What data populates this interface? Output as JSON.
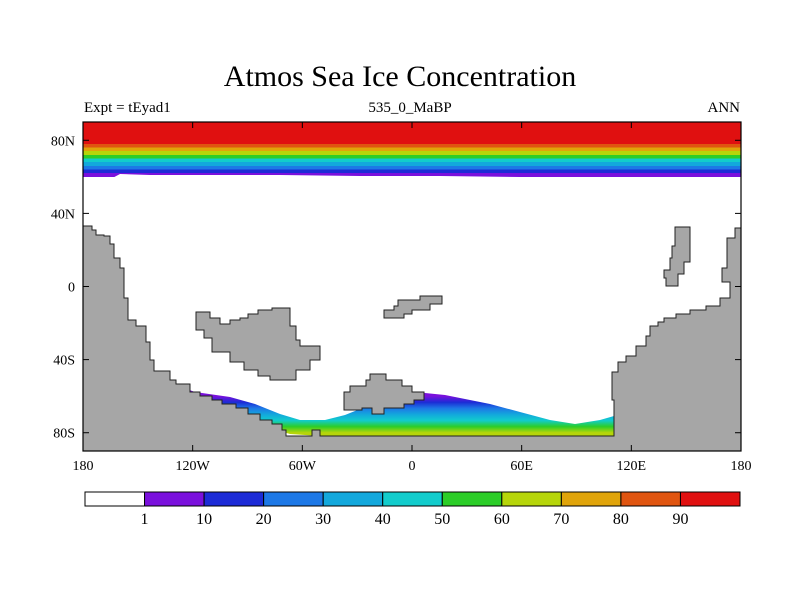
{
  "title": "Atmos Sea Ice Concentration",
  "subtitle_left": "Expt = tEyad1",
  "subtitle_center": "535_0_MaBP",
  "subtitle_right": "ANN",
  "colors": {
    "land": "#a6a6a6",
    "ocean": "#ffffff",
    "frame": "#000000",
    "levels": [
      "#ffffff",
      "#7a10dc",
      "#1c2bd6",
      "#1d78e6",
      "#13a8dc",
      "#12cccc",
      "#2ccd28",
      "#b6d50a",
      "#e0a40a",
      "#e05510",
      "#e01010"
    ]
  },
  "chart_data": {
    "type": "heatmap",
    "variable": "Atmos Sea Ice Concentration",
    "units": "%",
    "projection": "cylindrical equidistant",
    "lon_range": [
      -180,
      180
    ],
    "lat_range": [
      -90,
      90
    ],
    "x_ticks": [
      "180",
      "120W",
      "60W",
      "0",
      "60E",
      "120E",
      "180"
    ],
    "x_tick_values": [
      -180,
      -120,
      -60,
      0,
      60,
      120,
      180
    ],
    "y_ticks": [
      "80N",
      "40N",
      "0",
      "40S",
      "80S"
    ],
    "y_tick_values": [
      80,
      40,
      0,
      -40,
      -80
    ],
    "colorbar": {
      "labels": [
        "1",
        "10",
        "20",
        "30",
        "40",
        "50",
        "60",
        "70",
        "80",
        "90"
      ],
      "levels": [
        1,
        10,
        20,
        30,
        40,
        50,
        60,
        70,
        80,
        90
      ]
    },
    "north_zonal_profile": [
      {
        "lat": 90,
        "value": 95
      },
      {
        "lat": 82,
        "value": 92
      },
      {
        "lat": 78,
        "value": 85
      },
      {
        "lat": 76,
        "value": 75
      },
      {
        "lat": 74,
        "value": 65
      },
      {
        "lat": 72,
        "value": 55
      },
      {
        "lat": 70,
        "value": 45
      },
      {
        "lat": 68,
        "value": 35
      },
      {
        "lat": 66,
        "value": 25
      },
      {
        "lat": 64,
        "value": 15
      },
      {
        "lat": 62,
        "value": 5
      },
      {
        "lat": 60,
        "value": 0
      }
    ],
    "south_ice": {
      "lon_range": [
        -140,
        112
      ],
      "max_value": 65,
      "northern_edge_lat": -60,
      "max_near_lon": 0
    }
  }
}
